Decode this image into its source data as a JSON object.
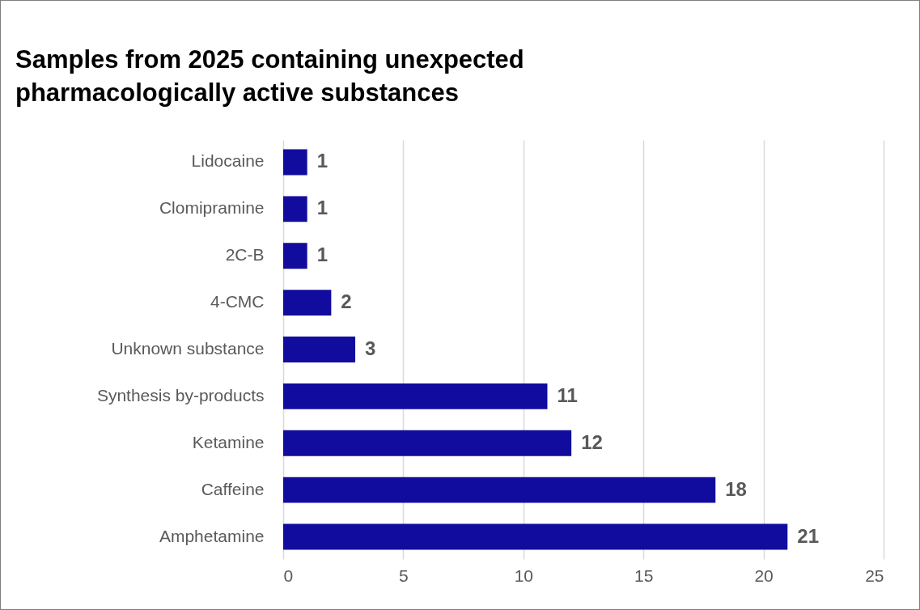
{
  "chart_data": {
    "type": "bar",
    "orientation": "horizontal",
    "title": "Samples from 2025 containing unexpected pharmacologically active substances",
    "categories": [
      "Lidocaine",
      "Clomipramine",
      "2C-B",
      "4-CMC",
      "Unknown substance",
      "Synthesis by-products",
      "Ketamine",
      "Caffeine",
      "Amphetamine"
    ],
    "values": [
      1,
      1,
      1,
      2,
      3,
      11,
      12,
      18,
      21
    ],
    "color": "#110c9e",
    "xlim": [
      0,
      25
    ],
    "xticks": [
      0,
      5,
      10,
      15,
      20,
      25
    ],
    "grid": "x",
    "data_labels": true
  }
}
